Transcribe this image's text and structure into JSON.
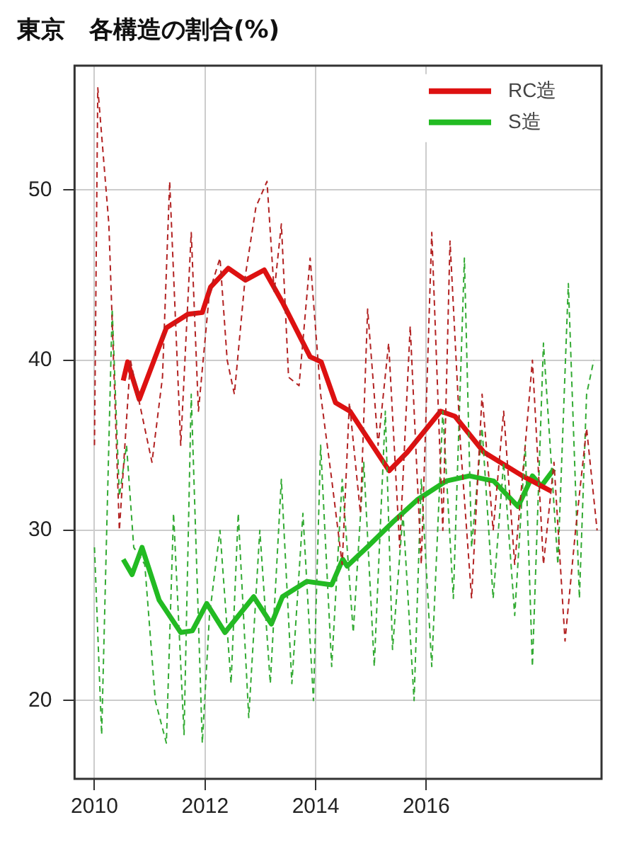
{
  "chart_data": {
    "type": "line",
    "title": "東京　各構造の割合(%)",
    "xlim": [
      2009.64,
      2019.17
    ],
    "xticks": [
      2010,
      2012,
      2014,
      2016
    ],
    "ylim": [
      15.4,
      57.3
    ],
    "yticks": [
      20,
      30,
      40,
      50
    ],
    "grid": true,
    "legend": "top right",
    "series": [
      {
        "color": "#b22222",
        "line_style": "dashed",
        "x": [
          2010.0,
          2010.06,
          2010.26,
          2010.45,
          2010.65,
          2010.78,
          2010.91,
          2011.04,
          2011.23,
          2011.36,
          2011.56,
          2011.75,
          2011.88,
          2012.08,
          2012.27,
          2012.4,
          2012.53,
          2012.73,
          2012.92,
          2013.12,
          2013.25,
          2013.38,
          2013.51,
          2013.7,
          2013.9,
          2014.09,
          2014.29,
          2014.48,
          2014.61,
          2014.81,
          2014.94,
          2015.13,
          2015.32,
          2015.52,
          2015.71,
          2015.91,
          2016.1,
          2016.3,
          2016.43,
          2016.62,
          2016.82,
          2017.01,
          2017.21,
          2017.4,
          2017.6,
          2017.79,
          2017.92,
          2018.12,
          2018.31,
          2018.51,
          2018.7,
          2018.9,
          2019.09
        ],
        "values": [
          35,
          56,
          48,
          30,
          40,
          38,
          36,
          34,
          39,
          50.5,
          35,
          47.5,
          37,
          44,
          46,
          40,
          38,
          45,
          49,
          50.5,
          44,
          48,
          39,
          38.5,
          46,
          38,
          33,
          28,
          37.5,
          31,
          43,
          35,
          41,
          29,
          42,
          28,
          47.5,
          30,
          47,
          35,
          26,
          38,
          30,
          37,
          28,
          35,
          40,
          28,
          34,
          23.5,
          30,
          36,
          30
        ]
      },
      {
        "color": "#33aa33",
        "line_style": "dashed",
        "x": [
          2010.0,
          2010.13,
          2010.32,
          2010.45,
          2010.58,
          2010.71,
          2010.91,
          2011.1,
          2011.3,
          2011.43,
          2011.62,
          2011.75,
          2011.95,
          2012.08,
          2012.27,
          2012.47,
          2012.6,
          2012.79,
          2012.99,
          2013.18,
          2013.38,
          2013.57,
          2013.77,
          2013.96,
          2014.09,
          2014.29,
          2014.48,
          2014.68,
          2014.87,
          2015.06,
          2015.26,
          2015.39,
          2015.58,
          2015.78,
          2015.91,
          2016.1,
          2016.3,
          2016.49,
          2016.69,
          2016.82,
          2017.01,
          2017.21,
          2017.4,
          2017.6,
          2017.79,
          2017.92,
          2018.12,
          2018.38,
          2018.57,
          2018.77,
          2018.9,
          2019.03
        ],
        "values": [
          29,
          18,
          43,
          32,
          35,
          29,
          28,
          20,
          17.5,
          31,
          18,
          38,
          17.5,
          25,
          30,
          21,
          31,
          19,
          30,
          21,
          33,
          21,
          31,
          20,
          35,
          22,
          33,
          24,
          34,
          22,
          37,
          23,
          31,
          20,
          33,
          22,
          37,
          26,
          46,
          29,
          36,
          26,
          34,
          25,
          35,
          22,
          41,
          28,
          44.5,
          26,
          38,
          40
        ]
      },
      {
        "name": "RC造",
        "color": "#dd1111",
        "line_style": "solid",
        "x": [
          2010.52,
          2010.6,
          2010.81,
          2011.3,
          2011.69,
          2011.95,
          2012.1,
          2012.42,
          2012.73,
          2013.07,
          2013.4,
          2013.9,
          2014.1,
          2014.36,
          2014.62,
          2015.33,
          2015.66,
          2016.26,
          2016.52,
          2017.04,
          2017.74,
          2018.26
        ],
        "values": [
          38.8,
          39.9,
          37.7,
          41.9,
          42.7,
          42.8,
          44.3,
          45.4,
          44.7,
          45.3,
          43.4,
          40.2,
          39.9,
          37.5,
          37.0,
          33.5,
          34.6,
          37.0,
          36.7,
          34.6,
          33.2,
          32.3
        ]
      },
      {
        "name": "S造",
        "color": "#22bb22",
        "line_style": "solid",
        "x": [
          2010.52,
          2010.68,
          2010.86,
          2011.17,
          2011.56,
          2011.77,
          2012.03,
          2012.36,
          2012.88,
          2013.2,
          2013.4,
          2013.84,
          2014.29,
          2014.49,
          2014.57,
          2014.96,
          2015.4,
          2015.84,
          2016.36,
          2016.78,
          2017.22,
          2017.66,
          2017.92,
          2018.08,
          2018.31
        ],
        "values": [
          28.3,
          27.4,
          29.0,
          25.9,
          24.0,
          24.1,
          25.7,
          24.0,
          26.1,
          24.5,
          26.1,
          27.0,
          26.8,
          28.3,
          27.9,
          29.1,
          30.5,
          31.8,
          32.9,
          33.2,
          32.9,
          31.4,
          33.2,
          32.6,
          33.6
        ]
      }
    ]
  }
}
